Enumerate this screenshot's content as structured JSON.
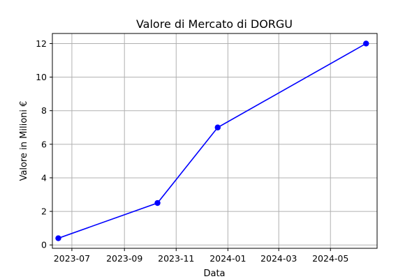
{
  "chart_data": {
    "type": "line",
    "title": "Valore di Mercato di DORGU",
    "xlabel": "Data",
    "ylabel": "Valore in Milioni €",
    "x_tick_labels": [
      "2023-07",
      "2023-09",
      "2023-11",
      "2024-01",
      "2024-03",
      "2024-05"
    ],
    "y_tick_labels": [
      "0",
      "2",
      "4",
      "6",
      "8",
      "10",
      "12"
    ],
    "xlim": [
      "2023-06-08",
      "2024-06-25"
    ],
    "ylim": [
      -0.2,
      12.6
    ],
    "grid": true,
    "series": [
      {
        "color": "#0000ff",
        "marker": "circle",
        "x": [
          "2023-06-15",
          "2023-10-10",
          "2023-12-20",
          "2024-06-12"
        ],
        "values": [
          0.4,
          2.5,
          7,
          12
        ]
      }
    ]
  }
}
